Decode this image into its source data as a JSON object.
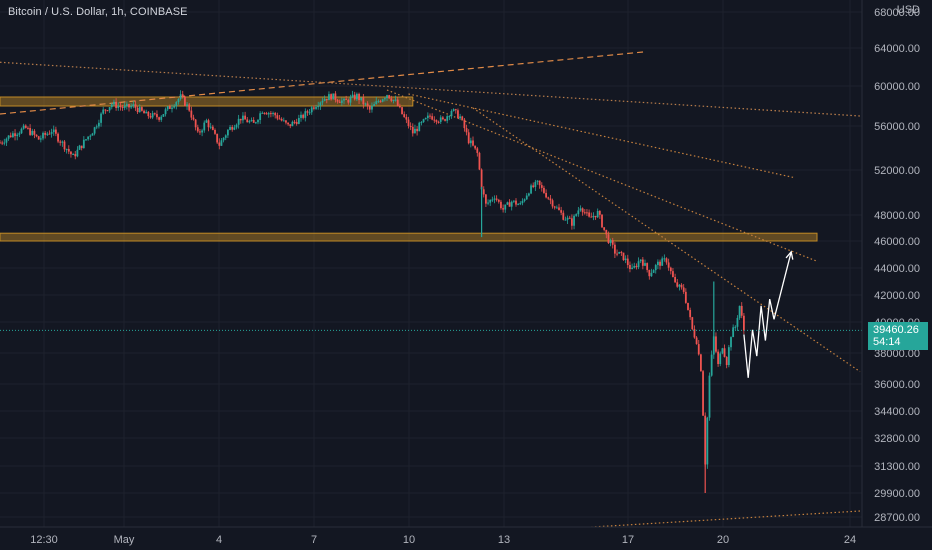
{
  "header": {
    "symbol_title": "Bitcoin / U.S. Dollar, 1h, COINBASE",
    "currency": "USD"
  },
  "price_tag": {
    "price": "39460.26",
    "countdown": "54:14"
  },
  "chart_data": {
    "type": "candlestick",
    "title": "Bitcoin / U.S. Dollar, 1h, COINBASE",
    "ylabel": "USD",
    "ylim": [
      28000,
      69000
    ],
    "y_ticks": [
      28700,
      29900,
      31300,
      32800,
      34400,
      36000,
      38000,
      40000,
      42000,
      44000,
      46000,
      48000,
      52000,
      56000,
      60000,
      64000,
      68000
    ],
    "x_ticks": [
      "12:30",
      "May",
      "4",
      "7",
      "10",
      "13",
      "17",
      "20",
      "24"
    ],
    "grid": true,
    "last_price": 39460.26,
    "price_path": [
      {
        "t": 0,
        "p": 54500
      },
      {
        "t": 3,
        "p": 55300
      },
      {
        "t": 6,
        "p": 55800
      },
      {
        "t": 9,
        "p": 54800
      },
      {
        "t": 12,
        "p": 55600
      },
      {
        "t": 15,
        "p": 54200
      },
      {
        "t": 17,
        "p": 53200
      },
      {
        "t": 20,
        "p": 54800
      },
      {
        "t": 22,
        "p": 55800
      },
      {
        "t": 24,
        "p": 57500
      },
      {
        "t": 26,
        "p": 58200
      },
      {
        "t": 29,
        "p": 57800
      },
      {
        "t": 31,
        "p": 58000
      },
      {
        "t": 34,
        "p": 57100
      },
      {
        "t": 37,
        "p": 56900
      },
      {
        "t": 40,
        "p": 58100
      },
      {
        "t": 42,
        "p": 58900
      },
      {
        "t": 44,
        "p": 57700
      },
      {
        "t": 46,
        "p": 55200
      },
      {
        "t": 48,
        "p": 56500
      },
      {
        "t": 51,
        "p": 54300
      },
      {
        "t": 53,
        "p": 55600
      },
      {
        "t": 56,
        "p": 56800
      },
      {
        "t": 59,
        "p": 56200
      },
      {
        "t": 61,
        "p": 57600
      },
      {
        "t": 64,
        "p": 57100
      },
      {
        "t": 67,
        "p": 56000
      },
      {
        "t": 70,
        "p": 56800
      },
      {
        "t": 73,
        "p": 58000
      },
      {
        "t": 75,
        "p": 58700
      },
      {
        "t": 77,
        "p": 59000
      },
      {
        "t": 80,
        "p": 58400
      },
      {
        "t": 83,
        "p": 59000
      },
      {
        "t": 86,
        "p": 57600
      },
      {
        "t": 88,
        "p": 58500
      },
      {
        "t": 90,
        "p": 59200
      },
      {
        "t": 92,
        "p": 58400
      },
      {
        "t": 94,
        "p": 56800
      },
      {
        "t": 96,
        "p": 55400
      },
      {
        "t": 98,
        "p": 56200
      },
      {
        "t": 100,
        "p": 57000
      },
      {
        "t": 103,
        "p": 56500
      },
      {
        "t": 105,
        "p": 57600
      },
      {
        "t": 107,
        "p": 56900
      },
      {
        "t": 109,
        "p": 54700
      },
      {
        "t": 111,
        "p": 53500
      },
      {
        "t": 112,
        "p": 50500
      },
      {
        "t": 113,
        "p": 48900
      },
      {
        "t": 115,
        "p": 49700
      },
      {
        "t": 117,
        "p": 48500
      },
      {
        "t": 119,
        "p": 49200
      },
      {
        "t": 121,
        "p": 48900
      },
      {
        "t": 123,
        "p": 50200
      },
      {
        "t": 125,
        "p": 50800
      },
      {
        "t": 127,
        "p": 49800
      },
      {
        "t": 129,
        "p": 48800
      },
      {
        "t": 131,
        "p": 47900
      },
      {
        "t": 133,
        "p": 47400
      },
      {
        "t": 135,
        "p": 48800
      },
      {
        "t": 137,
        "p": 47700
      },
      {
        "t": 139,
        "p": 48200
      },
      {
        "t": 141,
        "p": 46400
      },
      {
        "t": 143,
        "p": 45200
      },
      {
        "t": 145,
        "p": 44800
      },
      {
        "t": 147,
        "p": 43800
      },
      {
        "t": 149,
        "p": 44700
      },
      {
        "t": 151,
        "p": 43600
      },
      {
        "t": 153,
        "p": 44300
      },
      {
        "t": 155,
        "p": 44600
      },
      {
        "t": 157,
        "p": 42800
      },
      {
        "t": 159,
        "p": 42300
      },
      {
        "t": 161,
        "p": 39500
      },
      {
        "t": 162,
        "p": 38800
      },
      {
        "t": 163,
        "p": 37000
      },
      {
        "t": 164,
        "p": 31500
      },
      {
        "t": 165,
        "p": 36500
      },
      {
        "t": 166,
        "p": 39000
      },
      {
        "t": 167,
        "p": 37200
      },
      {
        "t": 168,
        "p": 38500
      },
      {
        "t": 169,
        "p": 37400
      },
      {
        "t": 170,
        "p": 39200
      },
      {
        "t": 171,
        "p": 39700
      },
      {
        "t": 172,
        "p": 41200
      },
      {
        "t": 173,
        "p": 39460
      }
    ],
    "spikes": [
      {
        "t": 112,
        "low": 46300
      },
      {
        "t": 164,
        "low": 29900
      },
      {
        "t": 166,
        "high": 43000
      }
    ],
    "projection": [
      {
        "t": 173,
        "p": 39200
      },
      {
        "t": 174,
        "p": 36400
      },
      {
        "t": 175,
        "p": 39500
      },
      {
        "t": 176,
        "p": 37800
      },
      {
        "t": 177,
        "p": 41200
      },
      {
        "t": 178,
        "p": 38800
      },
      {
        "t": 179,
        "p": 41700
      },
      {
        "t": 180,
        "p": 40200
      },
      {
        "t": 184,
        "p": 45200
      }
    ],
    "levels": [
      {
        "name": "resistance-zone-upper",
        "low": 58000,
        "high": 58900,
        "t_start": 0,
        "t_end": 96
      },
      {
        "name": "resistance-zone-lower",
        "low": 46000,
        "high": 46600,
        "t_start": 0,
        "t_end": 190
      }
    ],
    "trendlines": [
      {
        "name": "rising-dashed",
        "style": "dashed",
        "color": "#e08a47",
        "from": {
          "t": 0,
          "p": 57200
        },
        "to": {
          "t": 150,
          "p": 63600
        }
      },
      {
        "name": "long-falling-dotted",
        "style": "dotted",
        "color": "#b97d4b",
        "from": {
          "t": 0,
          "p": 62500
        },
        "to": {
          "t": 200,
          "p": 57000
        }
      },
      {
        "name": "falling-dotted-mid",
        "style": "dotted",
        "color": "#c6813e",
        "from": {
          "t": 95,
          "p": 59200
        },
        "to": {
          "t": 185,
          "p": 51300
        }
      },
      {
        "name": "falling-dotted-steep",
        "style": "dotted",
        "color": "#c6813e",
        "from": {
          "t": 110,
          "p": 57800
        },
        "to": {
          "t": 200,
          "p": 36800
        }
      },
      {
        "name": "falling-dotted-lower",
        "style": "dotted",
        "color": "#c6813e",
        "from": {
          "t": 90,
          "p": 59600
        },
        "to": {
          "t": 190,
          "p": 44500
        }
      },
      {
        "name": "bottom-rising-dotted",
        "style": "dotted",
        "color": "#c6813e",
        "from": {
          "t": 130,
          "p": 28100
        },
        "to": {
          "t": 200,
          "p": 29000
        }
      }
    ],
    "colors": {
      "background": "#131722",
      "grid": "#1e222d",
      "bull": "#26a69a",
      "bear": "#ef5350",
      "zone": "#c08a25",
      "projection": "#ffffff",
      "price_line": "#26a69a",
      "axis_text": "#b2b5be"
    }
  }
}
